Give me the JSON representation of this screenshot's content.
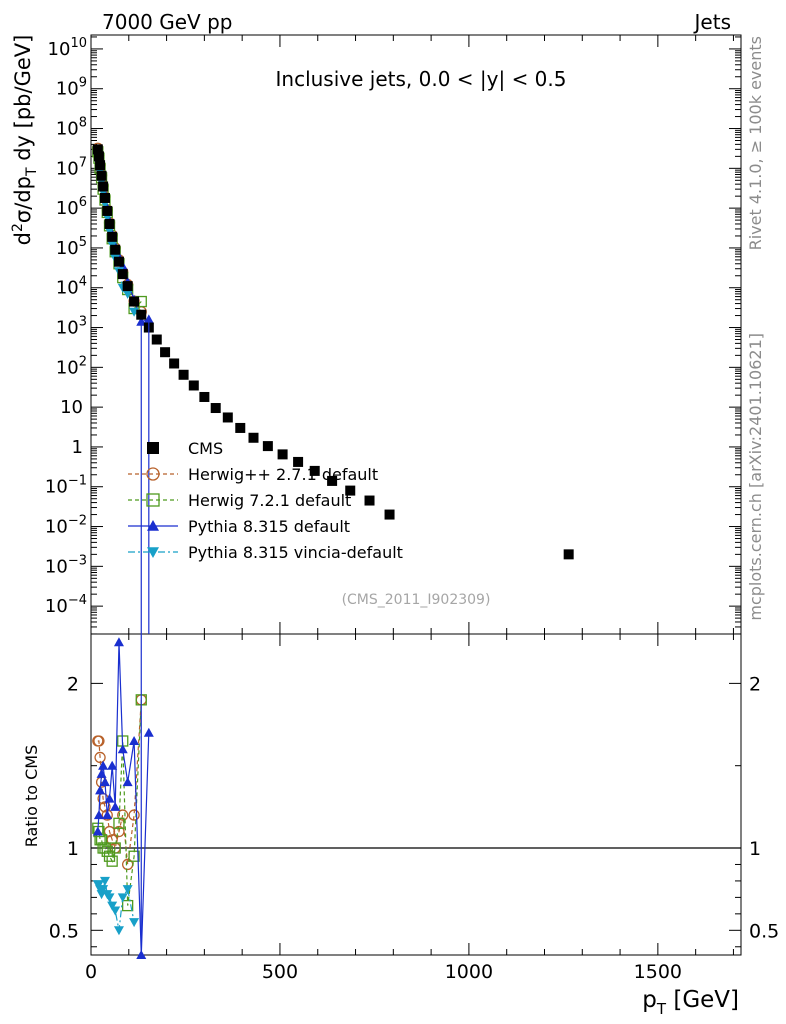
{
  "header": {
    "energy": "7000 GeV pp",
    "category": "Jets",
    "side_rivet": "Rivet 4.1.0, ≥ 100k events",
    "side_site": "mcplots.cern.ch [arXiv:2401.10621]"
  },
  "chart_data": [
    {
      "panel": "main",
      "type": "scatter",
      "title": "Inclusive jets, 0.0 < |y| < 0.5",
      "ylabel": "d²σ/dp_T dy [pb/GeV]",
      "yscale": "log",
      "xlim": [
        0,
        1720
      ],
      "ylim_log10": [
        -4.7,
        10.35
      ],
      "y_ticks": [
        {
          "exp": 10,
          "label": "10",
          "sup": "10"
        },
        {
          "exp": 9,
          "label": "10",
          "sup": "9"
        },
        {
          "exp": 8,
          "label": "10",
          "sup": "8"
        },
        {
          "exp": 7,
          "label": "10",
          "sup": "7"
        },
        {
          "exp": 6,
          "label": "10",
          "sup": "6"
        },
        {
          "exp": 5,
          "label": "10",
          "sup": "5"
        },
        {
          "exp": 4,
          "label": "10",
          "sup": "4"
        },
        {
          "exp": 3,
          "label": "10",
          "sup": "3"
        },
        {
          "exp": 2,
          "label": "10",
          "sup": "2"
        },
        {
          "exp": 1,
          "label": "10",
          "sup": ""
        },
        {
          "exp": 0,
          "label": "1",
          "sup": ""
        },
        {
          "exp": -1,
          "label": "10",
          "sup": "−1"
        },
        {
          "exp": -2,
          "label": "10",
          "sup": "−2"
        },
        {
          "exp": -3,
          "label": "10",
          "sup": "−3"
        },
        {
          "exp": -4,
          "label": "10",
          "sup": "−4"
        }
      ],
      "watermark": "(CMS_2011_I902309)",
      "series": [
        {
          "name": "CMS",
          "color": "#000000",
          "marker": "square-filled",
          "line": "none",
          "x": [
            18,
            21,
            24,
            28,
            32,
            37,
            43,
            49,
            56,
            64,
            74,
            84,
            97,
            114,
            133,
            153,
            174,
            196,
            220,
            245,
            272,
            300,
            330,
            362,
            395,
            430,
            468,
            507,
            548,
            592,
            638,
            686,
            737,
            790,
            1264
          ],
          "y": [
            30000000.0,
            20000000.0,
            12000000.0,
            6500000.0,
            3500000.0,
            1800000.0,
            850000.0,
            400000.0,
            190000.0,
            90000.0,
            45000.0,
            22000.0,
            11000.0,
            4500.0,
            2100.0,
            1000.0,
            500,
            240,
            125,
            65,
            35,
            18,
            9.5,
            5.5,
            3.0,
            1.7,
            1.05,
            0.65,
            0.42,
            0.25,
            0.14,
            0.08,
            0.045,
            0.02,
            0.002
          ]
        },
        {
          "name": "Herwig++ 2.7.1 default",
          "color": "#b8612a",
          "marker": "circle-open",
          "line": "dashed",
          "x": [
            18,
            21,
            24,
            28,
            32,
            37,
            43,
            49,
            56,
            64,
            74,
            84,
            97,
            114,
            133
          ],
          "y": [
            32000000.0,
            21000000.0,
            12000000.0,
            6700000.0,
            3600000.0,
            1900000.0,
            900000.0,
            430000.0,
            210000.0,
            100000.0,
            50000.0,
            25000.0,
            12000.0,
            4600.0,
            2500.0
          ]
        },
        {
          "name": "Herwig 7.2.1 default",
          "color": "#4e9a1e",
          "marker": "square-open",
          "line": "dashed",
          "x": [
            18,
            21,
            24,
            28,
            32,
            37,
            43,
            49,
            56,
            64,
            74,
            84,
            97,
            114,
            133
          ],
          "y": [
            26000000.0,
            18000000.0,
            10000000.0,
            5800000.0,
            3000000.0,
            1600000.0,
            780000.0,
            360000.0,
            170000.0,
            80000.0,
            40000.0,
            18000.0,
            9000.0,
            3000.0,
            4500.0
          ]
        },
        {
          "name": "Pythia 8.315 default",
          "color": "#1a2fcf",
          "marker": "triangle-up-filled",
          "line": "solid",
          "x": [
            18,
            21,
            24,
            28,
            32,
            37,
            43,
            49,
            56,
            64,
            74,
            84,
            97,
            114,
            133,
            153
          ],
          "y": [
            28000000.0,
            19000000.0,
            14000000.0,
            7000000.0,
            3900000.0,
            2200000.0,
            1000000.0,
            480000.0,
            220000.0,
            110000.0,
            60000.0,
            35000.0,
            14000.0,
            5000.0,
            1400.0,
            1600.0
          ]
        },
        {
          "name": "Pythia 8.315 vincia-default",
          "color": "#18a0c8",
          "marker": "triangle-down-filled",
          "line": "dashdot",
          "x": [
            18,
            21,
            24,
            28,
            32,
            37,
            43,
            49,
            56,
            64,
            74,
            84,
            97,
            114
          ],
          "y": [
            23000000.0,
            15000000.0,
            8500000.0,
            4600000.0,
            2500000.0,
            1300000.0,
            600000.0,
            270000.0,
            120000.0,
            55000.0,
            26000.0,
            10000.0,
            7000.0,
            2500.0
          ]
        }
      ]
    },
    {
      "panel": "ratio",
      "type": "line",
      "ylabel": "Ratio to CMS",
      "xlabel": "p_T [GeV]",
      "xlim": [
        0,
        1720
      ],
      "ylim": [
        0.35,
        2.3
      ],
      "x_ticks": [
        "0",
        "500",
        "1000",
        "1500"
      ],
      "y_ticks": [
        "0.5",
        "1",
        "2"
      ],
      "reference": 1,
      "series": [
        {
          "name": "Herwig++ 2.7.1 default",
          "x": [
            18,
            21,
            24,
            28,
            32,
            37,
            43,
            49,
            56,
            64,
            74,
            84,
            97,
            114,
            133
          ],
          "y": [
            1.65,
            1.65,
            1.55,
            1.4,
            1.3,
            1.25,
            1.2,
            1.1,
            1.05,
            1.0,
            1.1,
            1.2,
            0.9,
            1.2,
            1.9
          ]
        },
        {
          "name": "Herwig 7.2.1 default",
          "x": [
            18,
            21,
            24,
            28,
            32,
            37,
            43,
            49,
            56,
            64,
            74,
            84,
            97,
            114,
            133
          ],
          "y": [
            1.12,
            1.1,
            1.05,
            1.05,
            1.0,
            1.0,
            0.98,
            0.95,
            0.92,
            1.0,
            1.15,
            1.65,
            0.65,
            0.95,
            1.9
          ]
        },
        {
          "name": "Pythia 8.315 default",
          "x": [
            18,
            21,
            24,
            28,
            32,
            37,
            43,
            49,
            56,
            64,
            74,
            84,
            97,
            114,
            133,
            153
          ],
          "y": [
            1.1,
            1.2,
            1.35,
            1.45,
            1.5,
            1.4,
            1.2,
            1.3,
            1.5,
            1.25,
            2.25,
            1.6,
            1.4,
            1.65,
            0.35,
            1.7
          ]
        },
        {
          "name": "Pythia 8.315 vincia-default",
          "x": [
            18,
            21,
            24,
            28,
            32,
            37,
            43,
            49,
            56,
            64,
            74,
            84,
            97,
            114
          ],
          "y": [
            0.78,
            0.78,
            0.75,
            0.72,
            0.75,
            0.8,
            0.72,
            0.7,
            0.65,
            0.62,
            0.5,
            0.7,
            0.75,
            0.55
          ]
        }
      ]
    }
  ]
}
